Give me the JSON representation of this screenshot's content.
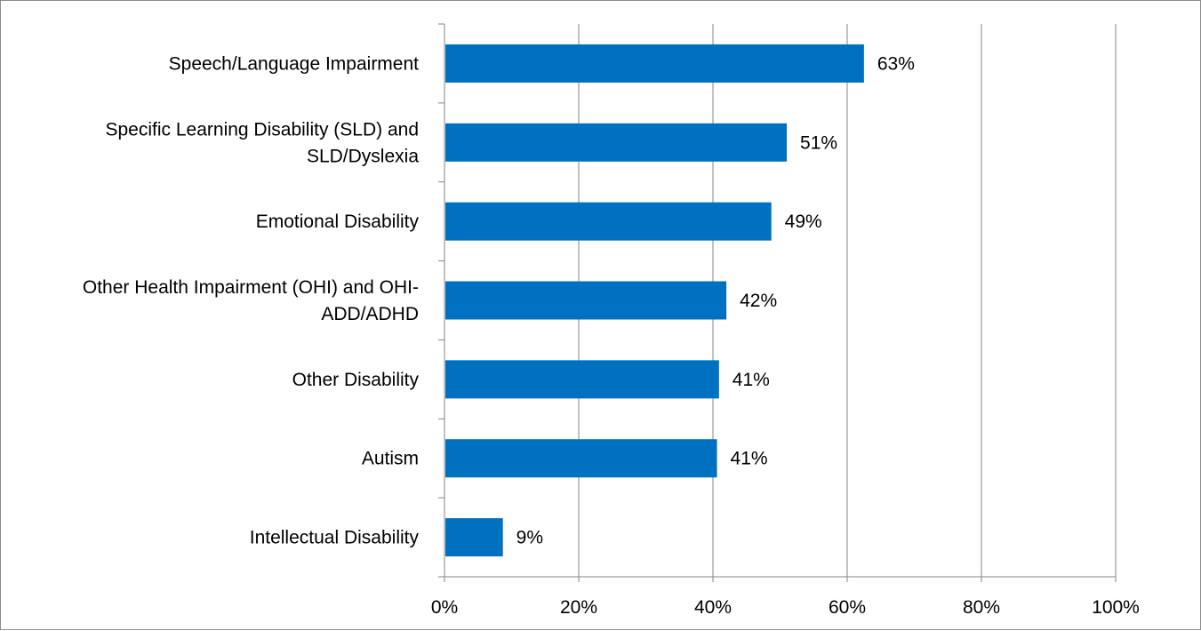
{
  "chart_data": {
    "type": "bar",
    "orientation": "horizontal",
    "categories": [
      [
        "Speech/Language Impairment"
      ],
      [
        "Specific Learning Disability (SLD) and",
        "SLD/Dyslexia"
      ],
      [
        "Emotional Disability"
      ],
      [
        "Other Health Impairment (OHI) and OHI-",
        "ADD/ADHD"
      ],
      [
        "Other Disability"
      ],
      [
        "Autism"
      ],
      [
        "Intellectual Disability"
      ]
    ],
    "values": [
      0.625,
      0.51,
      0.487,
      0.42,
      0.409,
      0.406,
      0.087
    ],
    "data_labels": [
      "63%",
      "51%",
      "49%",
      "42%",
      "41%",
      "41%",
      "9%"
    ],
    "xlim": [
      0,
      1
    ],
    "x_ticks": [
      0,
      0.2,
      0.4,
      0.6,
      0.8,
      1.0
    ],
    "x_tick_labels": [
      "0%",
      "20%",
      "40%",
      "60%",
      "80%",
      "100%"
    ],
    "grid": true,
    "legend": "none",
    "bar_color": "#0070C0",
    "gridline_color": "#868686",
    "title": "",
    "xlabel": "",
    "ylabel": ""
  }
}
